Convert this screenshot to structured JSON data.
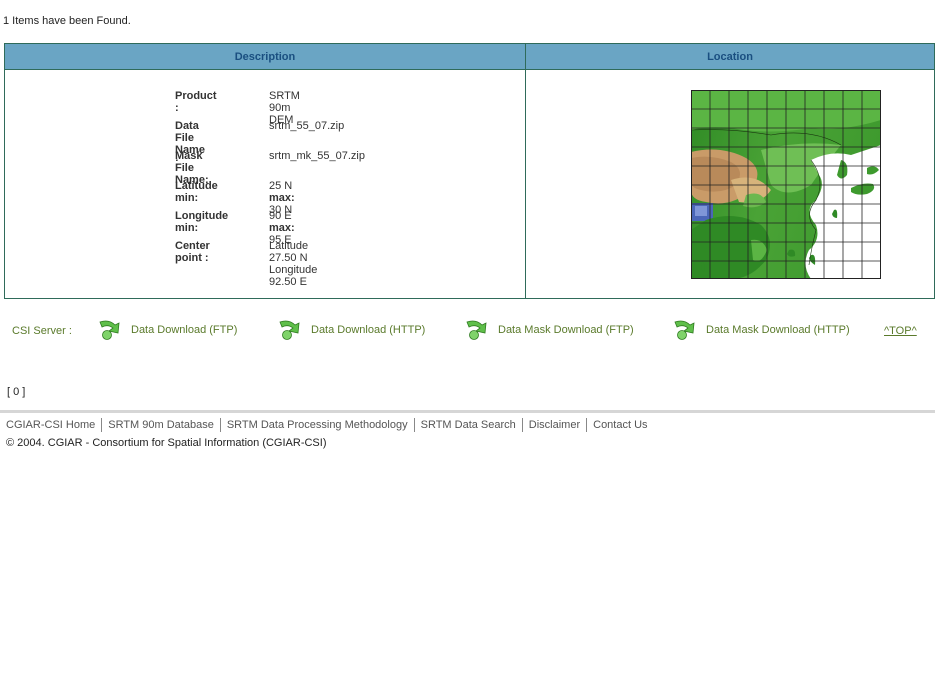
{
  "results": {
    "count_text": "1 Items have been Found."
  },
  "table": {
    "headers": {
      "description": "Description",
      "location": "Location"
    },
    "product": {
      "label": "Product :",
      "value": "SRTM 90m DEM"
    },
    "data_file": {
      "label": "Data File Name :",
      "value": "srtm_55_07.zip"
    },
    "mask_file": {
      "label": "Mask File Name:",
      "value": "srtm_mk_55_07.zip"
    },
    "latitude": {
      "label": "Latitude min:",
      "min": "25 N",
      "max_label": "max:",
      "max": "30 N"
    },
    "longitude": {
      "label": "Longitude min:",
      "min": "90 E",
      "max_label": "max:",
      "max": "95 E"
    },
    "center": {
      "label": "Center point :",
      "lat": "Latitude 27.50 N",
      "lon": "Longitude 92.50 E"
    }
  },
  "downloads": {
    "server_label": "CSI Server :",
    "items": [
      {
        "label": "Data Download (FTP)",
        "icon": "download-arrow-icon"
      },
      {
        "label": "Data Download (HTTP)",
        "icon": "download-arrow-icon"
      },
      {
        "label": "Data Mask Download (FTP)",
        "icon": "download-arrow-icon"
      },
      {
        "label": "Data Mask Download (HTTP)",
        "icon": "download-arrow-icon"
      }
    ],
    "top_link": "^TOP^"
  },
  "pager": {
    "text": "[ 0 ]"
  },
  "footer": {
    "nav": [
      "CGIAR-CSI Home",
      "SRTM 90m Database",
      "SRTM Data Processing Methodology",
      "SRTM Data Search",
      "Disclaimer",
      "Contact Us"
    ],
    "copyright": "© 2004. CGIAR - Consortium for Spatial Information (CGIAR-CSI)"
  },
  "colors": {
    "header_bg": "#6aa5c4",
    "header_text": "#1a4f80",
    "border": "#2f6b5a",
    "link_green": "#5a7a2b"
  }
}
